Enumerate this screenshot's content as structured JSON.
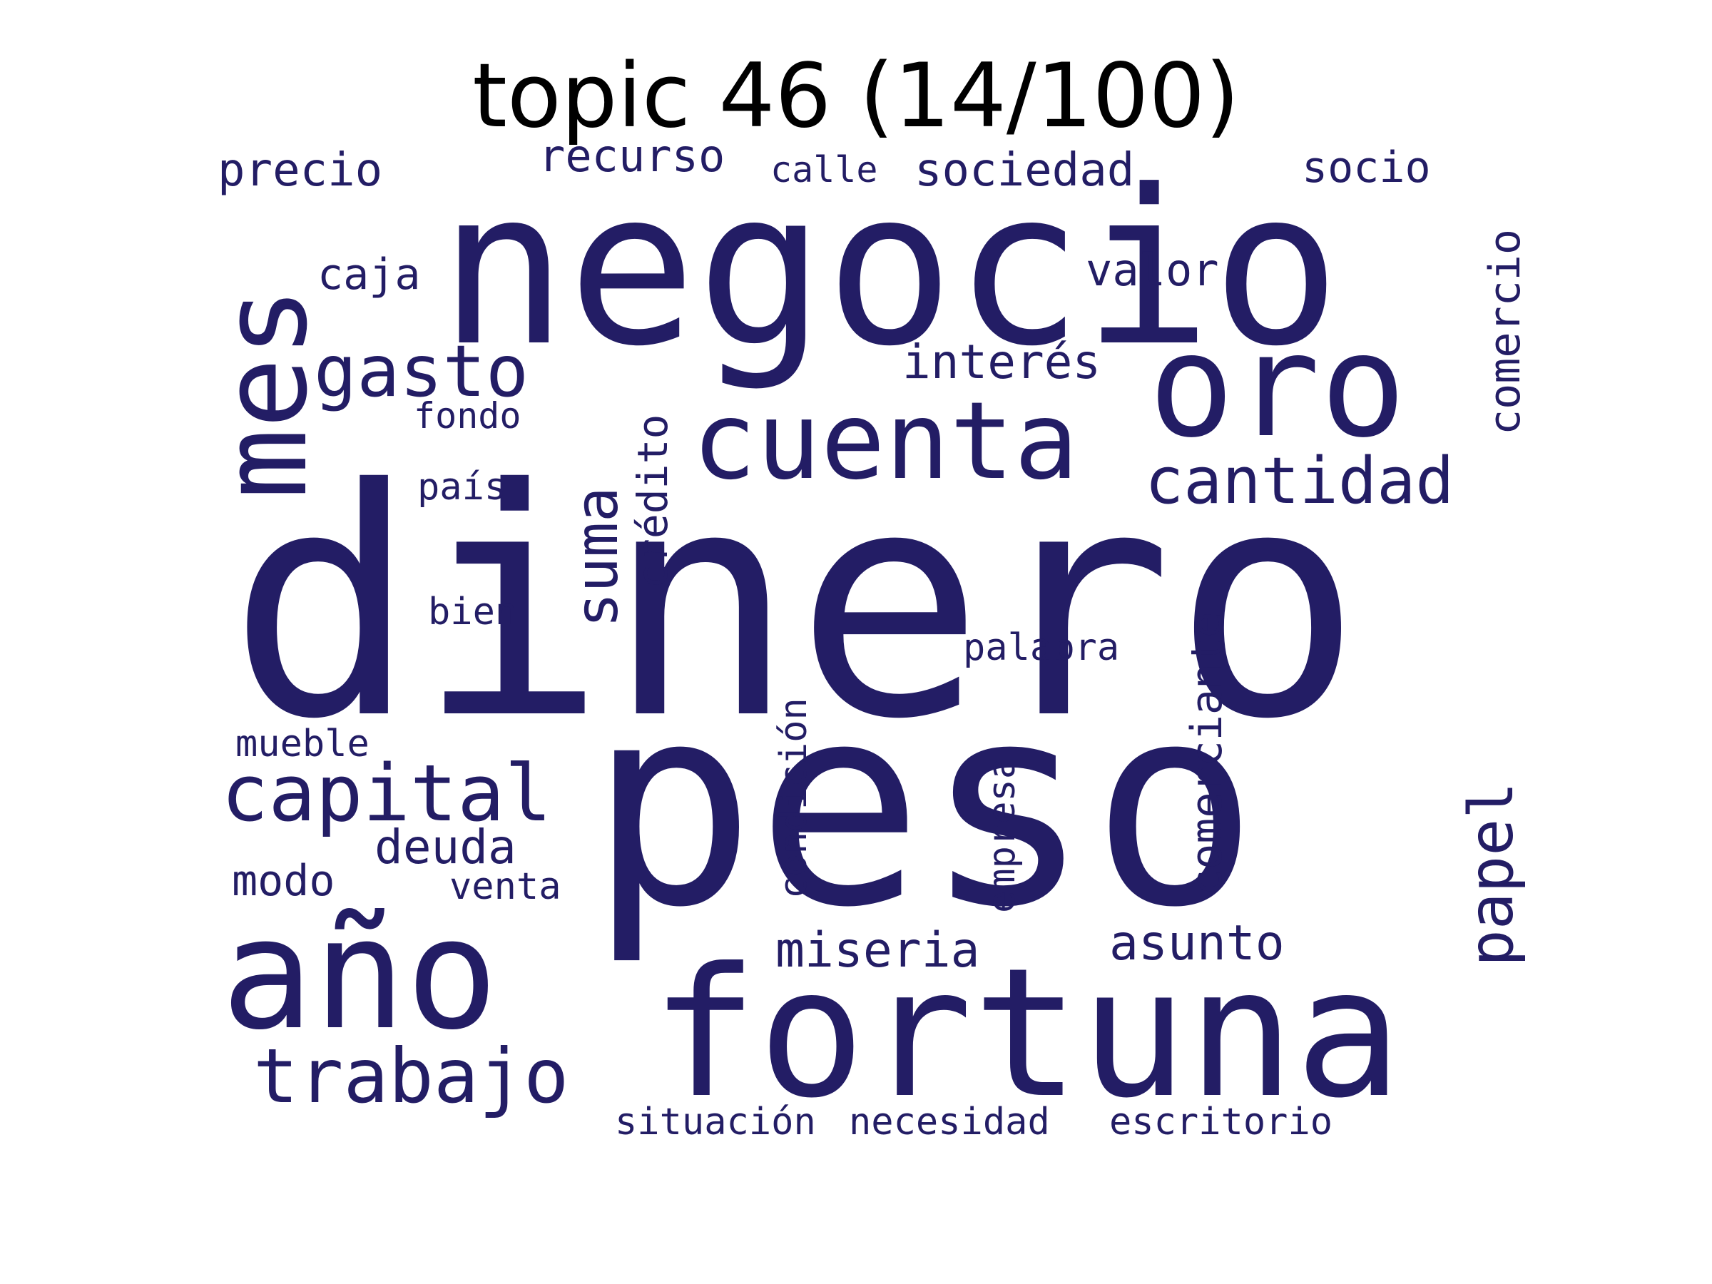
{
  "title": "topic 46 (14/100)",
  "word_color": "#231D65",
  "background_color": "#FFFFFF",
  "words": [
    {
      "text": "dinero",
      "orientation": "horizontal"
    },
    {
      "text": "peso",
      "orientation": "horizontal"
    },
    {
      "text": "negocio",
      "orientation": "horizontal"
    },
    {
      "text": "fortuna",
      "orientation": "horizontal"
    },
    {
      "text": "año",
      "orientation": "horizontal"
    },
    {
      "text": "oro",
      "orientation": "horizontal"
    },
    {
      "text": "mes",
      "orientation": "vertical"
    },
    {
      "text": "cuenta",
      "orientation": "horizontal"
    },
    {
      "text": "capital",
      "orientation": "horizontal"
    },
    {
      "text": "trabajo",
      "orientation": "horizontal"
    },
    {
      "text": "gasto",
      "orientation": "horizontal"
    },
    {
      "text": "cantidad",
      "orientation": "horizontal"
    },
    {
      "text": "papel",
      "orientation": "vertical"
    },
    {
      "text": "suma",
      "orientation": "vertical"
    },
    {
      "text": "miseria",
      "orientation": "horizontal"
    },
    {
      "text": "asunto",
      "orientation": "horizontal"
    },
    {
      "text": "deuda",
      "orientation": "horizontal"
    },
    {
      "text": "interés",
      "orientation": "horizontal"
    },
    {
      "text": "sociedad",
      "orientation": "horizontal"
    },
    {
      "text": "comerciante",
      "orientation": "vertical"
    },
    {
      "text": "comercio",
      "orientation": "vertical"
    },
    {
      "text": "precio",
      "orientation": "horizontal"
    },
    {
      "text": "valor",
      "orientation": "horizontal"
    },
    {
      "text": "socio",
      "orientation": "horizontal"
    },
    {
      "text": "recurso",
      "orientation": "horizontal"
    },
    {
      "text": "crédito",
      "orientation": "vertical"
    },
    {
      "text": "caja",
      "orientation": "horizontal"
    },
    {
      "text": "modo",
      "orientation": "horizontal"
    },
    {
      "text": "condición",
      "orientation": "vertical"
    },
    {
      "text": "empresa",
      "orientation": "vertical"
    },
    {
      "text": "escritorio",
      "orientation": "horizontal"
    },
    {
      "text": "situación",
      "orientation": "horizontal"
    },
    {
      "text": "necesidad",
      "orientation": "horizontal"
    },
    {
      "text": "palabra",
      "orientation": "horizontal"
    },
    {
      "text": "venta",
      "orientation": "horizontal"
    },
    {
      "text": "calle",
      "orientation": "horizontal"
    },
    {
      "text": "fondo",
      "orientation": "horizontal"
    },
    {
      "text": "país",
      "orientation": "horizontal"
    },
    {
      "text": "bien",
      "orientation": "horizontal"
    },
    {
      "text": "mueble",
      "orientation": "horizontal"
    }
  ]
}
